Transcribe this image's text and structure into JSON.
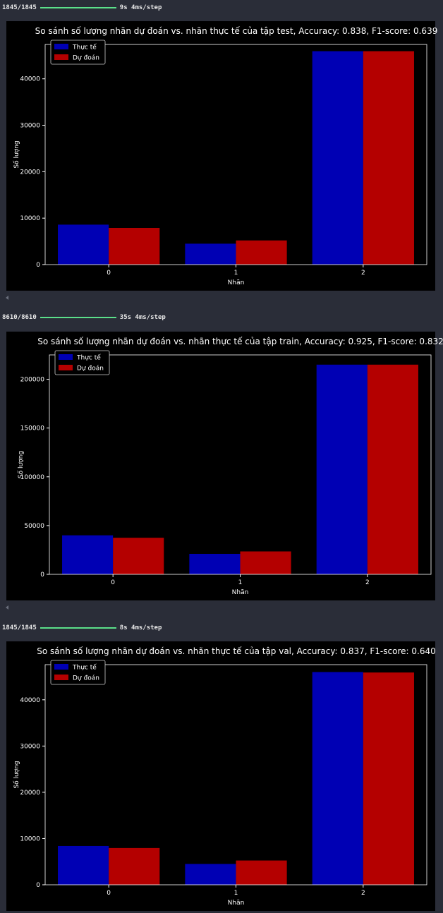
{
  "cells": [
    {
      "progress": {
        "steps": "1845/1845",
        "timing": "9s 4ms/step",
        "fraction": 1.0
      },
      "chart": {
        "subset": "test"
      }
    },
    {
      "progress": {
        "steps": "8610/8610",
        "timing": "35s 4ms/step",
        "fraction": 1.0
      },
      "chart": {
        "subset": "train"
      }
    },
    {
      "progress": {
        "steps": "1845/1845",
        "timing": "8s 4ms/step",
        "fraction": 1.0
      },
      "chart": {
        "subset": "val"
      }
    }
  ],
  "colors": {
    "background": "#2a2d38",
    "plot_background": "#000000",
    "actual": "#0000b4",
    "predicted": "#b40000",
    "progress": "#5be08a",
    "text": "#ffffff"
  },
  "chart_data": [
    {
      "type": "bar",
      "title": "So sánh số lượng nhãn dự đoán vs. nhãn thực tế của tập test, Accuracy: 0.838, F1-score: 0.639",
      "xlabel": "Nhãn",
      "ylabel": "Số lượng",
      "categories": [
        "0",
        "1",
        "2"
      ],
      "series": [
        {
          "name": "Thực tế",
          "values": [
            8600,
            4500,
            45950
          ]
        },
        {
          "name": "Dự đoán",
          "values": [
            7900,
            5200,
            45950
          ]
        }
      ],
      "ylim": [
        0,
        47400
      ],
      "yticks": [
        0,
        10000,
        20000,
        30000,
        40000
      ],
      "grid": false,
      "legend": "top-left"
    },
    {
      "type": "bar",
      "title": "So sánh số lượng nhãn dự đoán vs. nhãn thực tế của tập train, Accuracy: 0.925, F1-score: 0.832",
      "xlabel": "Nhãn",
      "ylabel": "Số lượng",
      "categories": [
        "0",
        "1",
        "2"
      ],
      "series": [
        {
          "name": "Thực tế",
          "values": [
            40000,
            21000,
            215000
          ]
        },
        {
          "name": "Dự đoán",
          "values": [
            37500,
            23500,
            215000
          ]
        }
      ],
      "ylim": [
        0,
        225000
      ],
      "yticks": [
        0,
        50000,
        100000,
        150000,
        200000
      ],
      "grid": false,
      "legend": "top-left"
    },
    {
      "type": "bar",
      "title": "So sánh số lượng nhãn dự đoán vs. nhãn thực tế của tập val, Accuracy: 0.837, F1-score: 0.640",
      "xlabel": "Nhãn",
      "ylabel": "Số lượng",
      "categories": [
        "0",
        "1",
        "2"
      ],
      "series": [
        {
          "name": "Thực tế",
          "values": [
            8400,
            4500,
            46000
          ]
        },
        {
          "name": "Dự đoán",
          "values": [
            7950,
            5250,
            45900
          ]
        }
      ],
      "ylim": [
        0,
        47600
      ],
      "yticks": [
        0,
        10000,
        20000,
        30000,
        40000
      ],
      "grid": false,
      "legend": "top-left"
    }
  ]
}
